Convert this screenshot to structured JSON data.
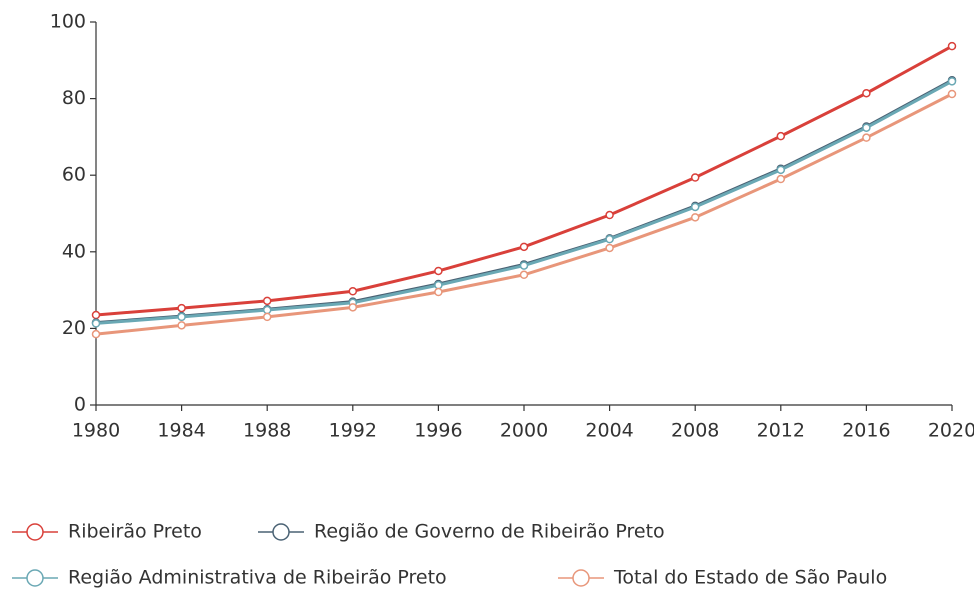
{
  "chart_data": {
    "type": "line",
    "x": [
      1980,
      1984,
      1988,
      1992,
      1996,
      2000,
      2004,
      2008,
      2012,
      2016,
      2020
    ],
    "xlim": [
      1980,
      2020
    ],
    "xticks": [
      1980,
      1984,
      1988,
      1992,
      1996,
      2000,
      2004,
      2008,
      2012,
      2016,
      2020
    ],
    "ylim": [
      0,
      100
    ],
    "yticks": [
      0,
      20,
      40,
      60,
      80,
      100
    ],
    "series": [
      {
        "name": "Ribeirão Preto",
        "color": "#d9403a",
        "values": [
          23.5,
          25.3,
          27.2,
          29.7,
          35,
          41.3,
          49.6,
          59.4,
          70.2,
          81.4,
          93.7
        ]
      },
      {
        "name": "Região de Governo de Ribeirão Preto",
        "color": "#4a6274",
        "values": [
          21.5,
          23.2,
          25,
          27,
          31.6,
          36.7,
          43.5,
          52,
          61.7,
          72.7,
          84.8
        ]
      },
      {
        "name": "Região Administrativa de Ribeirão Preto",
        "color": "#6aa8b4",
        "values": [
          21.3,
          23,
          24.8,
          26.7,
          31.3,
          36.4,
          43.3,
          51.7,
          61.4,
          72.4,
          84.5
        ]
      },
      {
        "name": "Total do Estado de São Paulo",
        "color": "#e8967a",
        "values": [
          18.5,
          20.8,
          23,
          25.5,
          29.5,
          34,
          41,
          49,
          59,
          69.8,
          81.2
        ]
      }
    ]
  }
}
